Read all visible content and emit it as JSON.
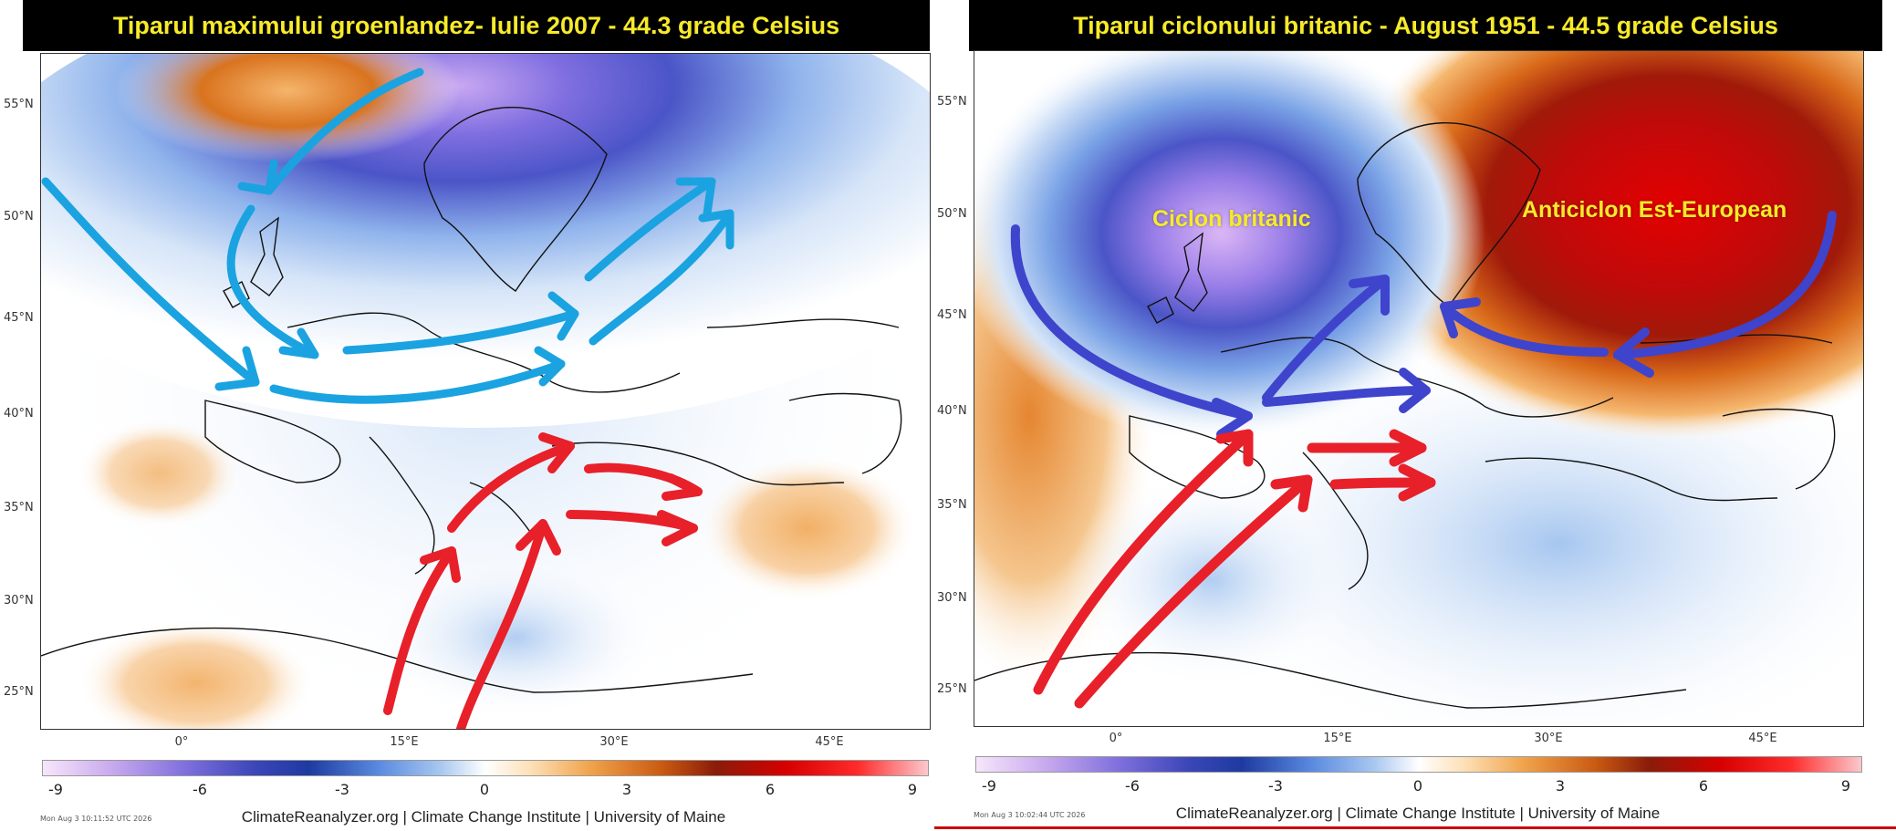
{
  "left_panel": {
    "title": "Tiparul maximului groenlandez- Iulie 2007 - 44.3 grade Celsius",
    "lat_labels": [
      "55°N",
      "50°N",
      "45°N",
      "40°N",
      "35°N",
      "30°N",
      "25°N"
    ],
    "lon_labels": [
      "0°",
      "15°E",
      "30°E",
      "45°E"
    ],
    "colorbar_ticks": [
      "-9",
      "-6",
      "-3",
      "0",
      "3",
      "6",
      "9"
    ],
    "timestamp": "Mon Aug  3 10:11:52 UTC 2026",
    "credit": "ClimateReanalyzer.org | Climate Change Institute | University of Maine"
  },
  "right_panel": {
    "title": "Tiparul ciclonului britanic - August 1951 - 44.5 grade Celsius",
    "lat_labels": [
      "55°N",
      "50°N",
      "45°N",
      "40°N",
      "35°N",
      "30°N",
      "25°N"
    ],
    "lon_labels": [
      "0°",
      "15°E",
      "30°E",
      "45°E"
    ],
    "colorbar_ticks": [
      "-9",
      "-6",
      "-3",
      "0",
      "3",
      "6",
      "9"
    ],
    "timestamp": "Mon Aug  3 10:02:44 UTC 2026",
    "credit": "ClimateReanalyzer.org | Climate Change Institute | University of Maine",
    "label_cyclone": "Ciclon britanic",
    "label_anticyclone": "Anticiclon Est-European"
  },
  "colors": {
    "title_text": "#f7ea2a",
    "arrow_cold_left": "#1aa3e0",
    "arrow_cold_right": "#3f44cc",
    "arrow_warm": "#e8202a"
  }
}
